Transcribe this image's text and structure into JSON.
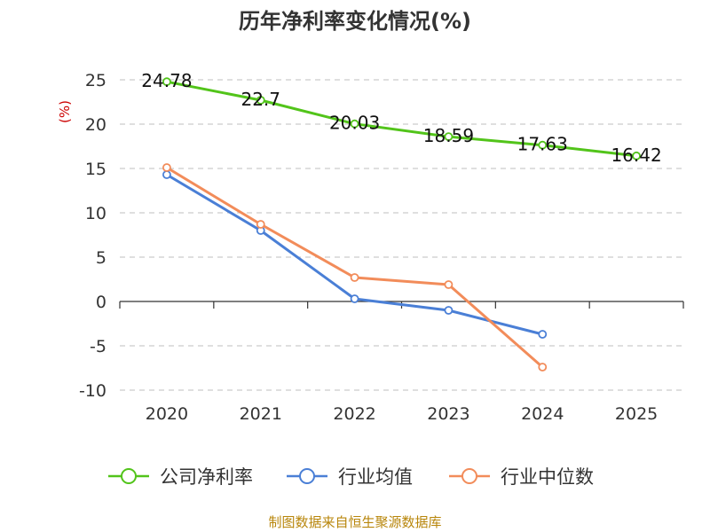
{
  "chart_data": {
    "type": "line",
    "title": "历年净利率变化情况(%)",
    "ylabel": "(%)",
    "categories": [
      "2020",
      "2021",
      "2022",
      "2023",
      "2024",
      "2025"
    ],
    "ylim": [
      -10,
      25
    ],
    "yticks": [
      25,
      20,
      15,
      10,
      5,
      0,
      -5,
      -10
    ],
    "grid": true,
    "legend_position": "bottom",
    "series": [
      {
        "name": "公司净利率",
        "color": "#52c41a",
        "values": [
          24.78,
          22.7,
          20.03,
          18.59,
          17.63,
          16.42
        ],
        "labels": [
          "24.78",
          "22.7",
          "20.03",
          "18.59",
          "17.63",
          "16.42"
        ]
      },
      {
        "name": "行业均值",
        "color": "#4a7fd6",
        "values": [
          14.3,
          8.0,
          0.3,
          -1.0,
          -3.7,
          null
        ]
      },
      {
        "name": "行业中位数",
        "color": "#f28c5a",
        "values": [
          15.1,
          8.7,
          2.7,
          1.9,
          -7.4,
          null
        ]
      }
    ]
  },
  "source": "制图数据来自恒生聚源数据库"
}
